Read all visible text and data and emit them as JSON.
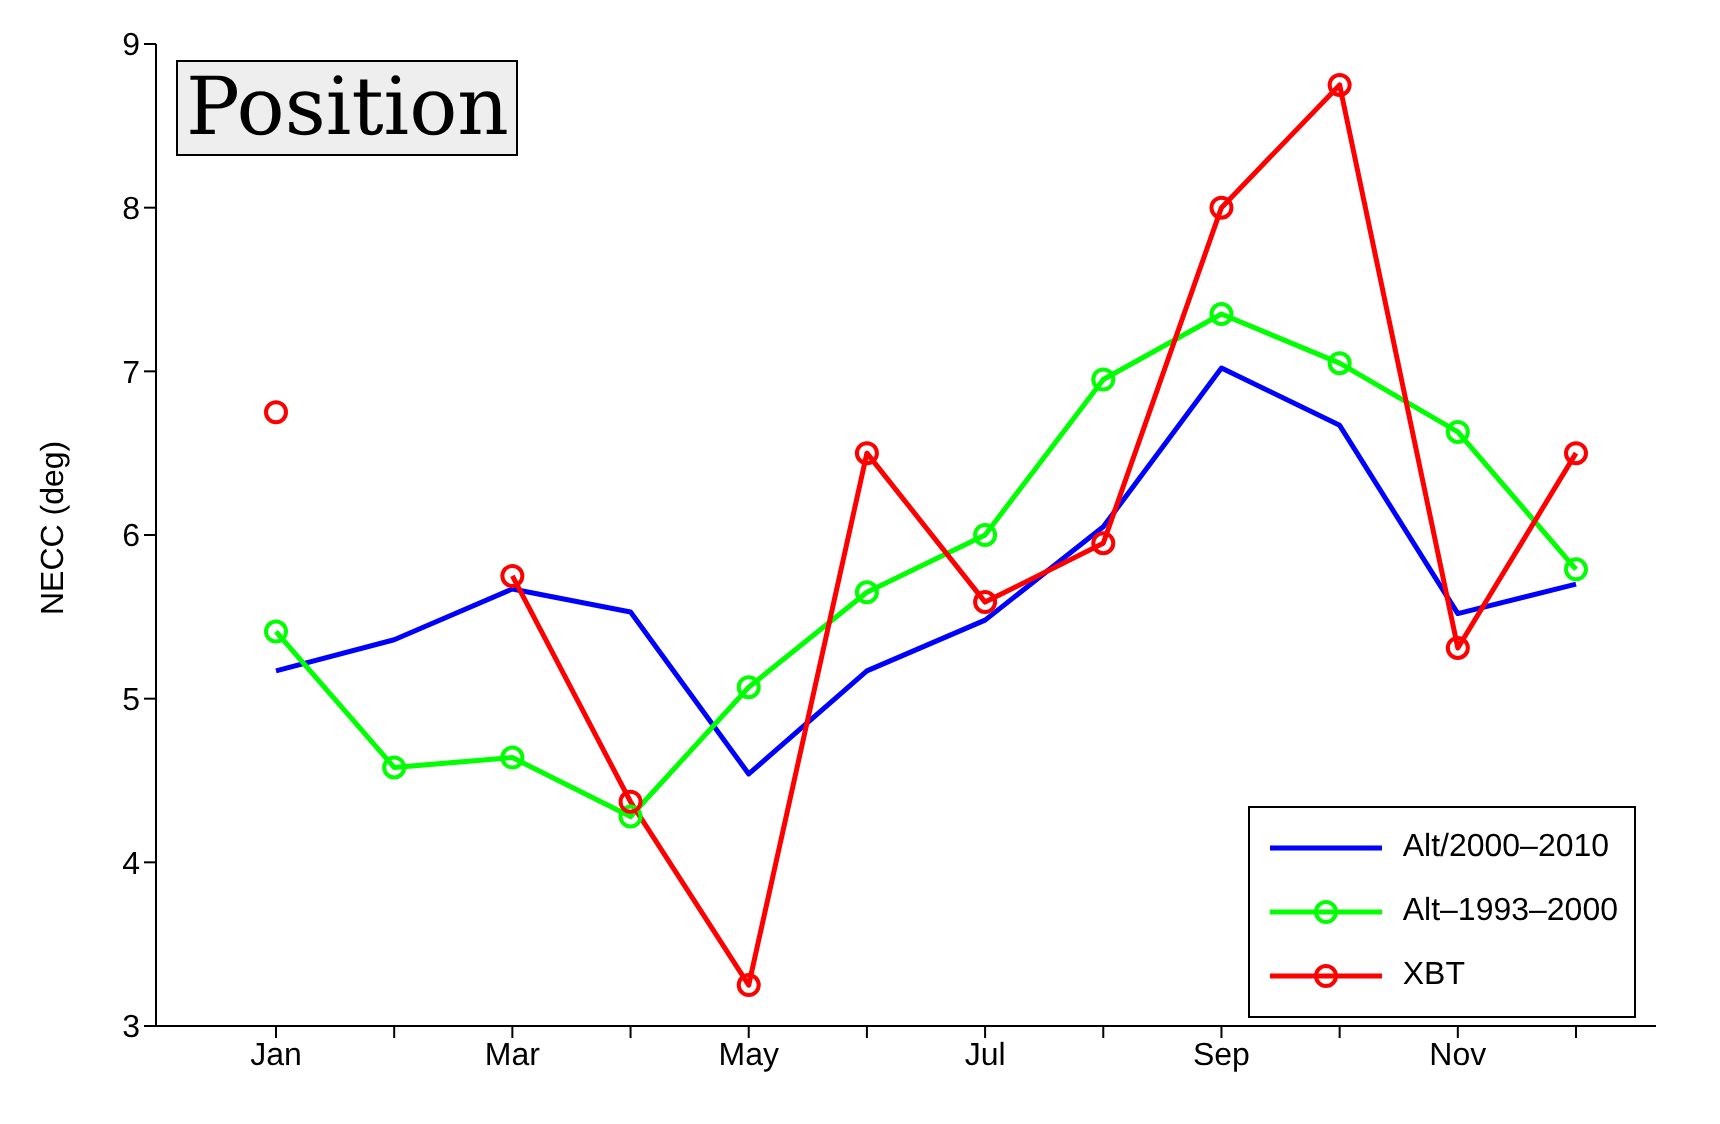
{
  "chart_data": {
    "type": "line",
    "title": "Position",
    "ylabel": "NECC (deg)",
    "categories": [
      "Jan",
      null,
      "Mar",
      null,
      "May",
      null,
      "Jul",
      null,
      "Sep",
      null,
      "Nov",
      null
    ],
    "series": [
      {
        "name": "Alt/2000–2010",
        "color": "#0000ff",
        "marker": "none",
        "values": [
          5.17,
          5.36,
          5.67,
          5.53,
          4.54,
          5.17,
          5.48,
          6.05,
          7.02,
          6.67,
          5.52,
          5.7
        ]
      },
      {
        "name": "Alt–1993–2000",
        "color": "#00ff00",
        "marker": "circle",
        "values": [
          5.41,
          4.58,
          4.64,
          4.28,
          5.07,
          5.65,
          6.0,
          6.95,
          7.35,
          7.05,
          6.63,
          5.79
        ]
      },
      {
        "name": "XBT",
        "color": "#ff0000",
        "marker": "circle",
        "values": [
          6.75,
          null,
          5.75,
          4.37,
          3.25,
          6.5,
          5.59,
          5.95,
          8.0,
          8.75,
          5.31,
          6.5
        ]
      }
    ],
    "ylim": [
      3,
      9
    ],
    "yticks": [
      3,
      4,
      5,
      6,
      7,
      8,
      9
    ],
    "grid": false,
    "legend": "bottom right",
    "line_style": "solid"
  }
}
